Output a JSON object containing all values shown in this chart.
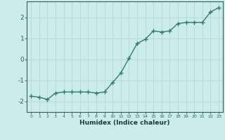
{
  "x": [
    0,
    1,
    2,
    3,
    4,
    5,
    6,
    7,
    8,
    9,
    10,
    11,
    12,
    13,
    14,
    15,
    16,
    17,
    18,
    19,
    20,
    21,
    22,
    23
  ],
  "y": [
    -1.75,
    -1.8,
    -1.9,
    -1.6,
    -1.55,
    -1.55,
    -1.55,
    -1.55,
    -1.6,
    -1.55,
    -1.1,
    -0.65,
    0.05,
    0.75,
    0.95,
    1.35,
    1.3,
    1.35,
    1.7,
    1.75,
    1.75,
    1.75,
    2.25,
    2.45
  ],
  "line_color": "#2e7d6e",
  "marker": "+",
  "marker_size": 4,
  "marker_color": "#2e7d6e",
  "line_width": 1.0,
  "xlabel": "Humidex (Indice chaleur)",
  "xlim": [
    -0.5,
    23.5
  ],
  "ylim": [
    -2.5,
    2.75
  ],
  "xticks": [
    0,
    1,
    2,
    3,
    4,
    5,
    6,
    7,
    8,
    9,
    10,
    11,
    12,
    13,
    14,
    15,
    16,
    17,
    18,
    19,
    20,
    21,
    22,
    23
  ],
  "yticks": [
    -2,
    -1,
    0,
    1,
    2
  ],
  "bg_color": "#ccecea",
  "grid_color": "#b0d8d5",
  "spine_color": "#2e6060",
  "tick_color": "#2e6060",
  "label_color": "#1a3a3a"
}
